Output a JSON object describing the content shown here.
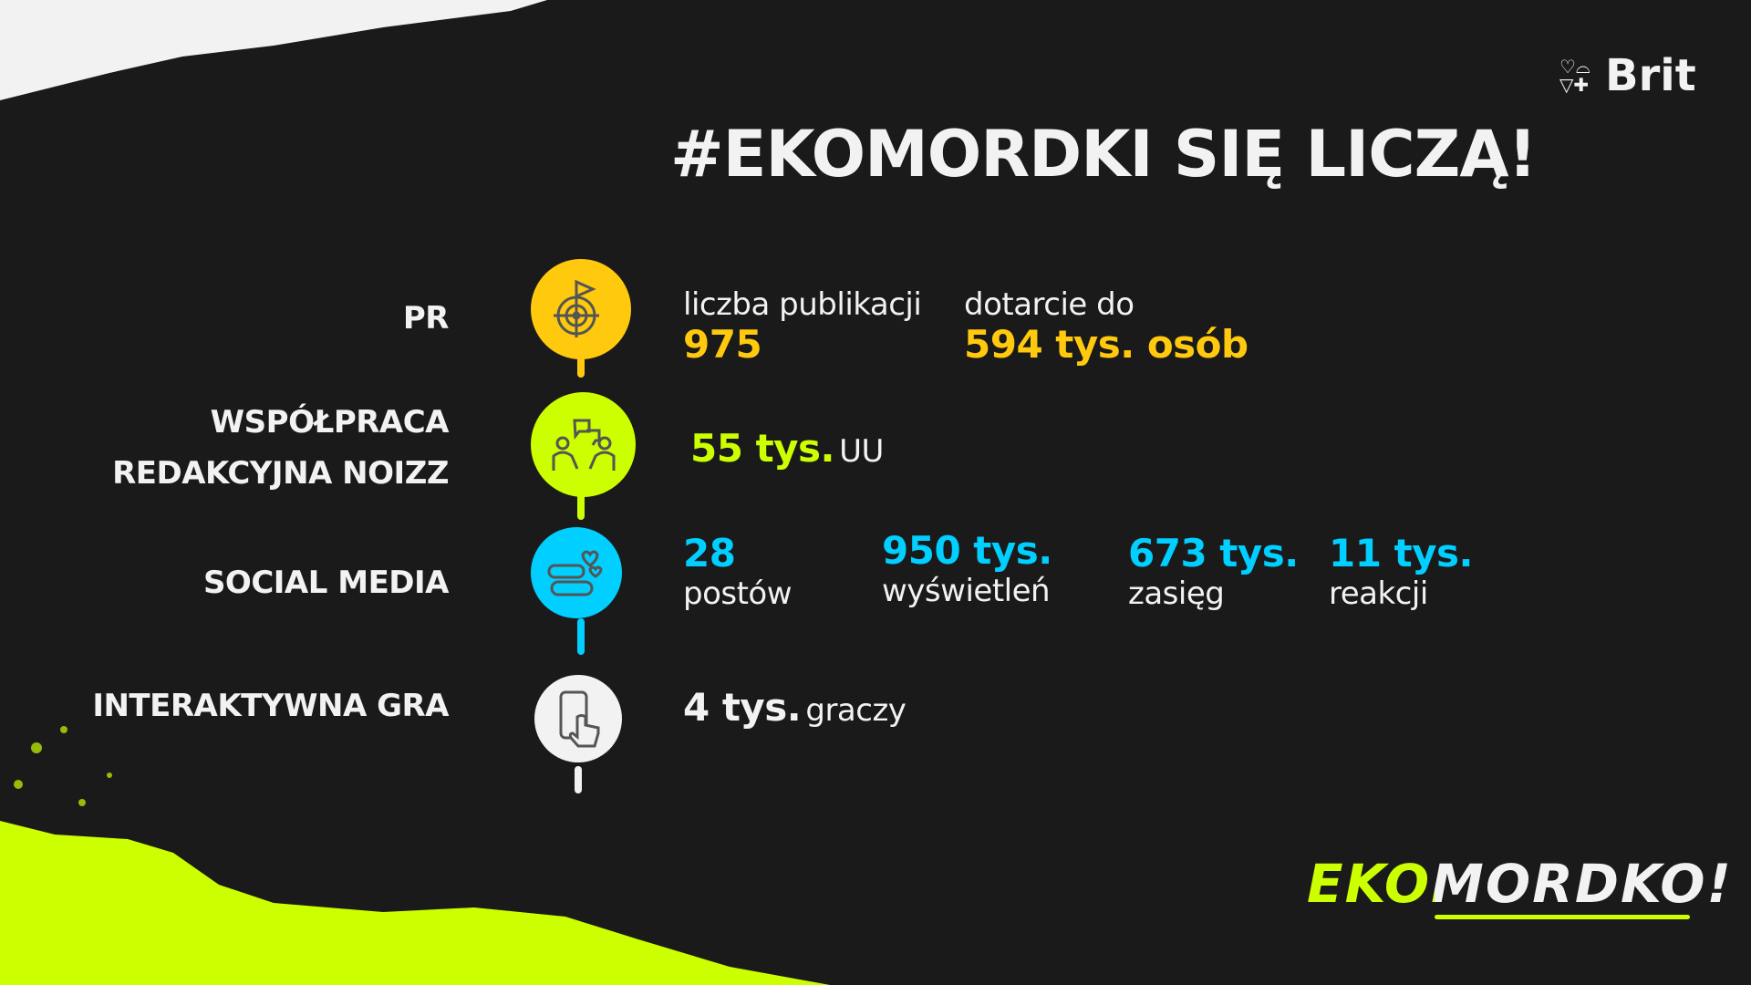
{
  "title": "#EKOMORDKI SIĘ LICZĄ!",
  "brand": {
    "name": "Brit",
    "campaign_logo": "EKOMORDKO!"
  },
  "colors": {
    "yellow": "#ffc90e",
    "lime": "#ccff00",
    "cyan": "#00cfff",
    "white": "#f2f2f2",
    "background": "#1b1a1b"
  },
  "rows": [
    {
      "label": "PR",
      "icon": "target-flag-icon",
      "stats": [
        {
          "caption": "liczba publikacji",
          "value": "975"
        },
        {
          "caption": "dotarcie do",
          "value": "594 tys. osób"
        }
      ]
    },
    {
      "label_lines": [
        "WSPÓŁPRACA",
        "REDAKCYJNA NOIZZ"
      ],
      "icon": "people-conversation-icon",
      "stats": [
        {
          "value": "55 tys.",
          "unit": "UU"
        }
      ]
    },
    {
      "label": "SOCIAL MEDIA",
      "icon": "chat-hearts-icon",
      "stats": [
        {
          "value": "28",
          "caption": "postów"
        },
        {
          "value": "950 tys.",
          "caption": "wyświetleń"
        },
        {
          "value": "673 tys.",
          "caption": "zasięg"
        },
        {
          "value": "11 tys.",
          "caption": "reakcji"
        }
      ]
    },
    {
      "label": "INTERAKTYWNA GRA",
      "icon": "phone-touch-icon",
      "stats": [
        {
          "value": "4 tys.",
          "unit": "graczy"
        }
      ]
    }
  ]
}
